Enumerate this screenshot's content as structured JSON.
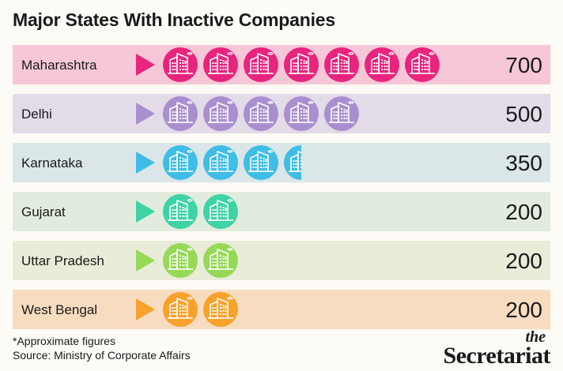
{
  "title": "Major States With Inactive Companies",
  "chart_data": {
    "type": "bar",
    "title": "Major States With Inactive Companies",
    "categories": [
      "Maharashtra",
      "Delhi",
      "Karnataka",
      "Gujarat",
      "Uttar Pradesh",
      "West Bengal"
    ],
    "values": [
      700,
      500,
      350,
      200,
      200,
      200
    ],
    "value_labels": [
      "700",
      "500",
      "350",
      "200",
      "200",
      "200"
    ],
    "unit_per_icon": 100,
    "icon": "office-building-icon",
    "colors": [
      {
        "row": "#f6c8d7",
        "icon": "#e8247e"
      },
      {
        "row": "#e3dbe8",
        "icon": "#a98fcf"
      },
      {
        "row": "#dbe6e8",
        "icon": "#3fbde6"
      },
      {
        "row": "#e2ecde",
        "icon": "#3ed3a5"
      },
      {
        "row": "#e9ecd9",
        "icon": "#95d957"
      },
      {
        "row": "#f8dcc0",
        "icon": "#f7a22c"
      }
    ]
  },
  "footnote": {
    "line1": "*Approximate figures",
    "line2": "Source: Ministry of Corporate Affairs"
  },
  "brand": {
    "small": "the",
    "big": "Secretariat"
  }
}
